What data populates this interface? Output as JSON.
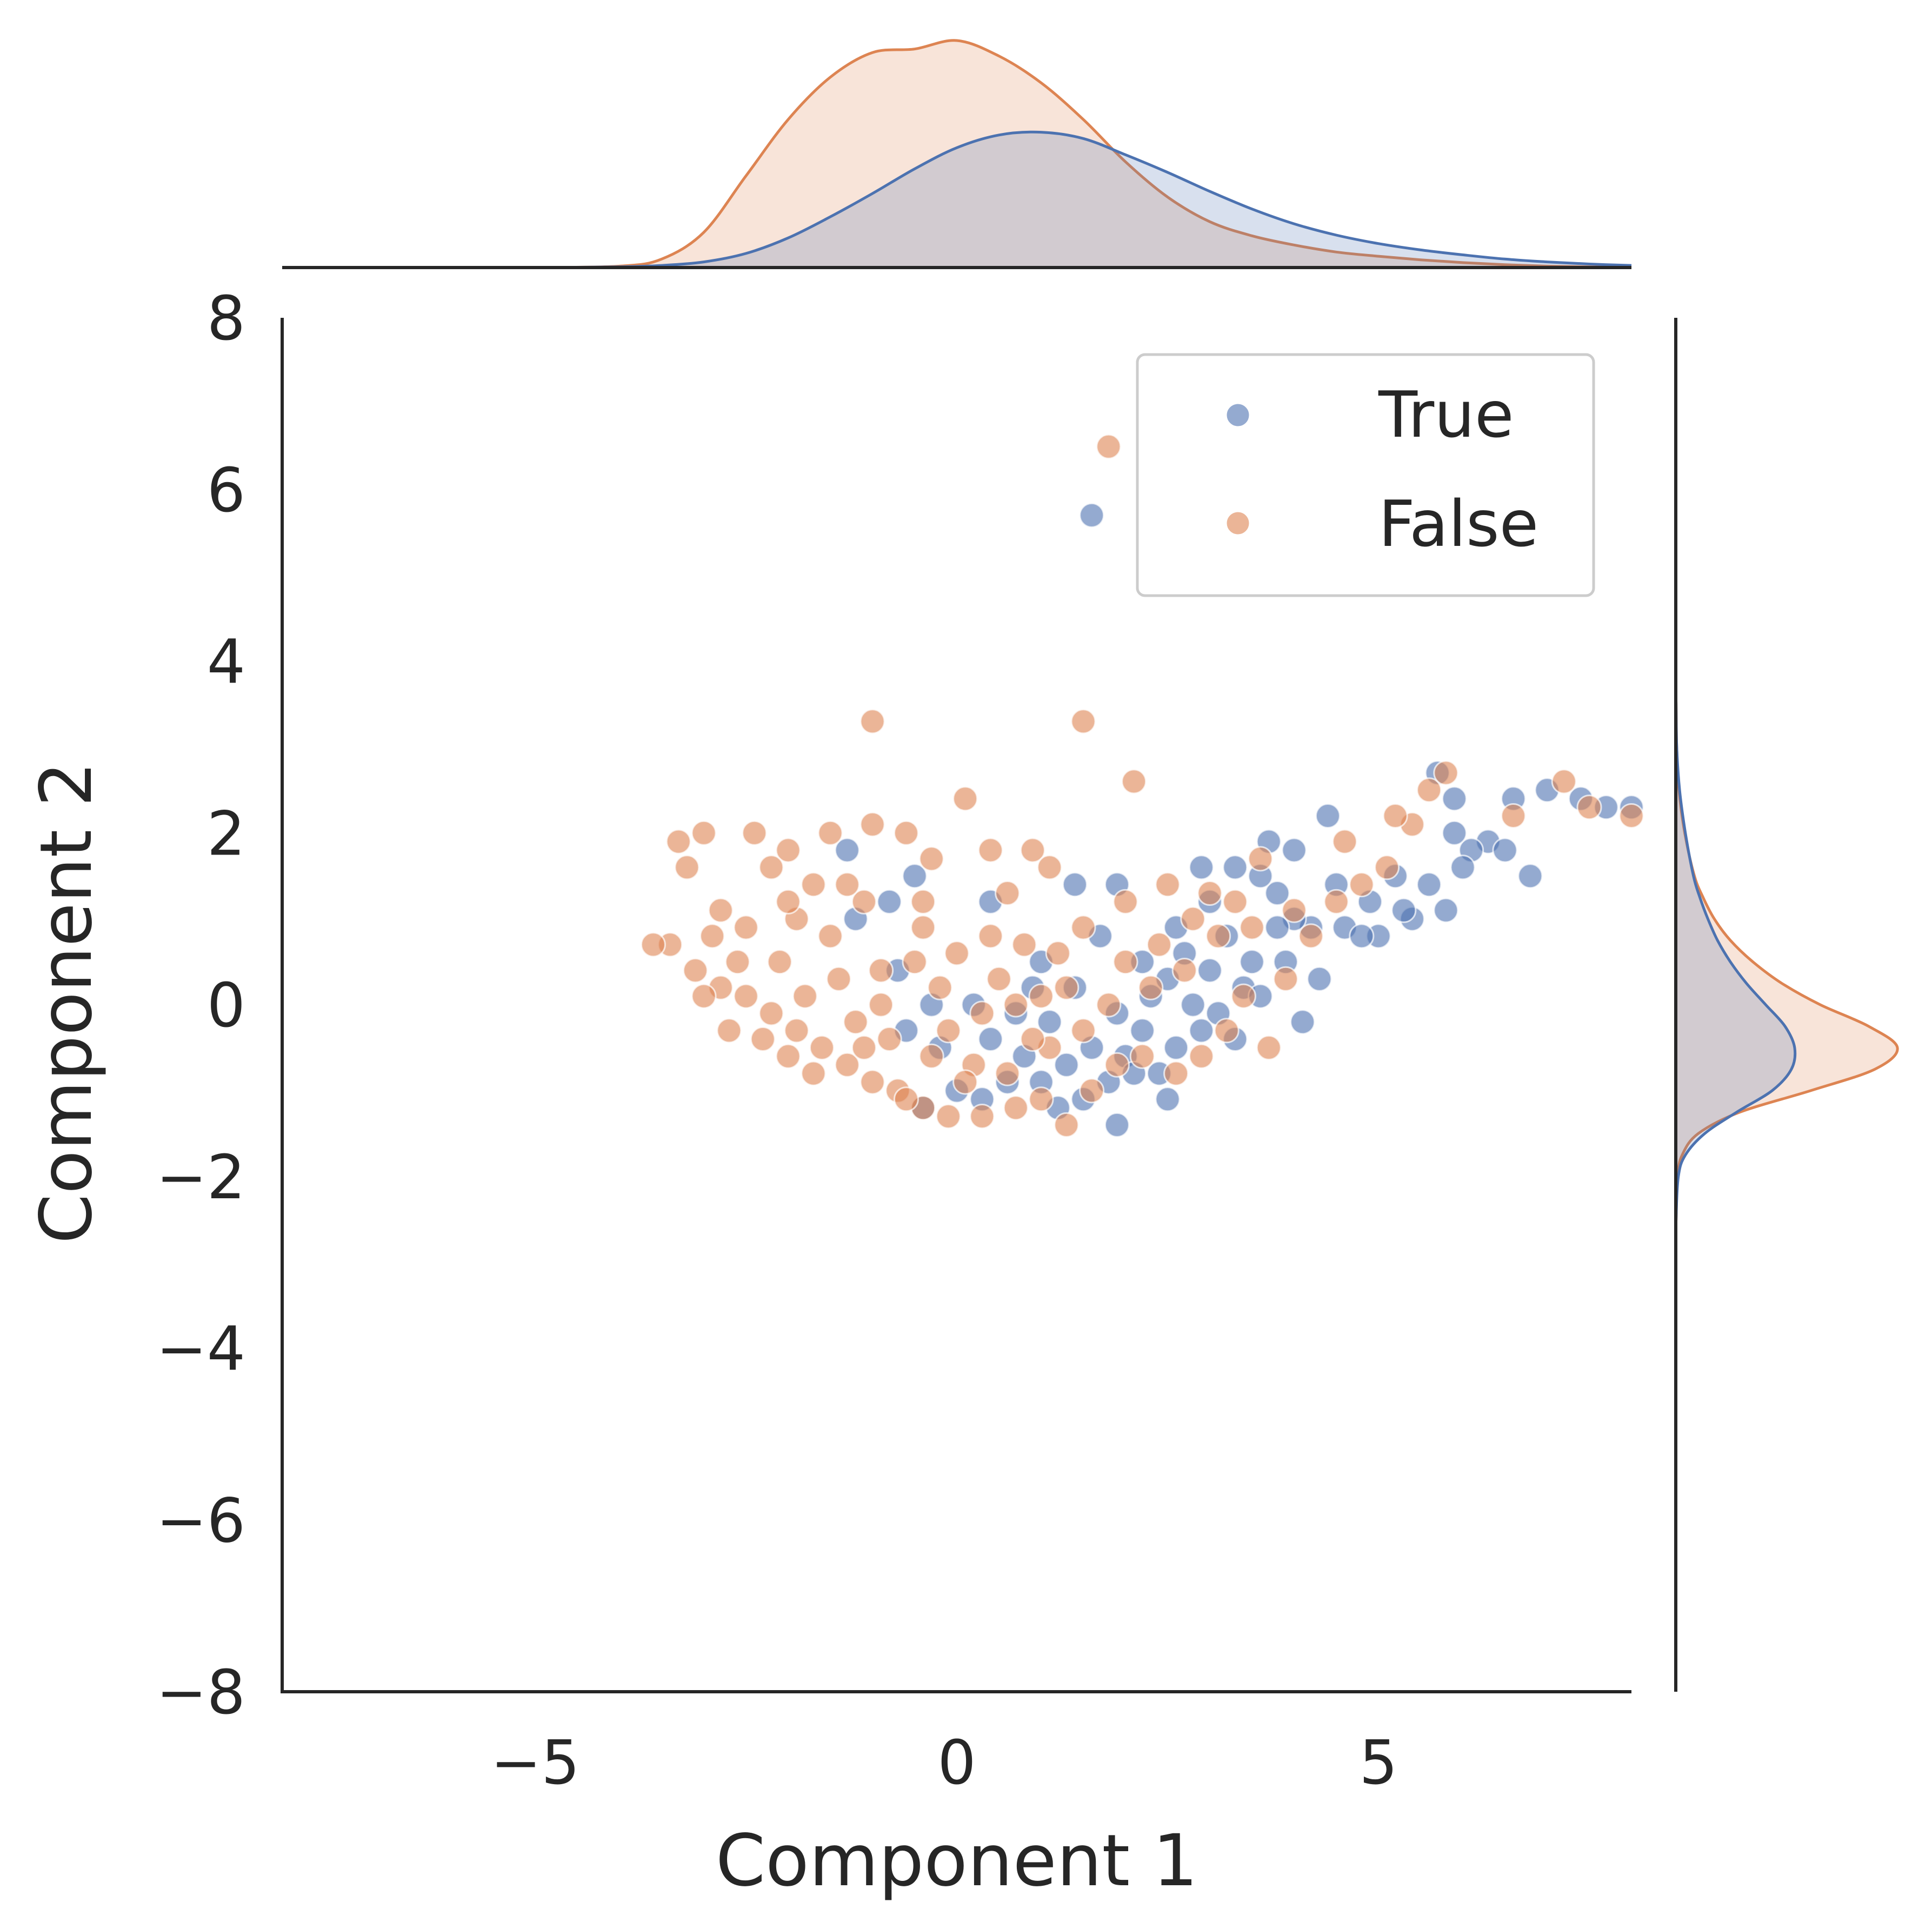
{
  "chart_data": {
    "type": "scatter",
    "subtype": "jointplot-with-marginal-kde",
    "title": "",
    "xlabel": "Component 1",
    "ylabel": "Component 2",
    "xlim": [
      -8,
      8
    ],
    "ylim": [
      -8,
      8
    ],
    "x_ticks": [
      {
        "value": -5,
        "label": "−5"
      },
      {
        "value": 0,
        "label": "0"
      },
      {
        "value": 5,
        "label": "5"
      }
    ],
    "y_ticks": [
      {
        "value": 8,
        "label": "8"
      },
      {
        "value": 6,
        "label": "6"
      },
      {
        "value": 4,
        "label": "4"
      },
      {
        "value": 2,
        "label": "2"
      },
      {
        "value": 0,
        "label": "0"
      },
      {
        "value": -2,
        "label": "−2"
      },
      {
        "value": -4,
        "label": "−4"
      },
      {
        "value": -6,
        "label": "−6"
      },
      {
        "value": -8,
        "label": "−8"
      }
    ],
    "grid": false,
    "legend": {
      "placement": "top-right",
      "entries": [
        "True",
        "False"
      ]
    },
    "series": [
      {
        "name": "True",
        "color": "#4c72b0",
        "points": [
          [
            1.6,
            5.7
          ],
          [
            8.0,
            2.3
          ],
          [
            7.4,
            2.4
          ],
          [
            7.0,
            2.5
          ],
          [
            6.3,
            1.9
          ],
          [
            6.1,
            1.8
          ],
          [
            5.9,
            2.4
          ],
          [
            5.7,
            2.7
          ],
          [
            6.5,
            1.8
          ],
          [
            6.8,
            1.5
          ],
          [
            6.0,
            1.6
          ],
          [
            5.6,
            1.4
          ],
          [
            5.2,
            1.5
          ],
          [
            5.4,
            1.0
          ],
          [
            5.0,
            0.8
          ],
          [
            4.6,
            0.9
          ],
          [
            4.2,
            0.9
          ],
          [
            4.0,
            1.0
          ],
          [
            3.8,
            1.3
          ],
          [
            3.6,
            1.5
          ],
          [
            4.4,
            2.2
          ],
          [
            3.7,
            1.9
          ],
          [
            3.3,
            1.6
          ],
          [
            2.9,
            1.6
          ],
          [
            3.0,
            1.2
          ],
          [
            3.2,
            0.8
          ],
          [
            2.7,
            0.6
          ],
          [
            2.5,
            0.3
          ],
          [
            2.3,
            0.1
          ],
          [
            2.8,
            0.0
          ],
          [
            3.1,
            -0.1
          ],
          [
            3.4,
            0.2
          ],
          [
            3.9,
            0.5
          ],
          [
            4.3,
            0.3
          ],
          [
            4.8,
            0.8
          ],
          [
            5.8,
            1.1
          ],
          [
            2.2,
            -0.3
          ],
          [
            2.6,
            -0.5
          ],
          [
            2.4,
            -0.8
          ],
          [
            2.0,
            -0.6
          ],
          [
            1.8,
            -0.9
          ],
          [
            1.5,
            -1.1
          ],
          [
            1.2,
            -1.2
          ],
          [
            1.0,
            -0.9
          ],
          [
            0.8,
            -0.6
          ],
          [
            1.6,
            -0.5
          ],
          [
            1.9,
            -0.1
          ],
          [
            1.4,
            0.2
          ],
          [
            1.1,
            -0.2
          ],
          [
            0.6,
            -0.9
          ],
          [
            0.3,
            -1.1
          ],
          [
            0.0,
            -1.0
          ],
          [
            -0.4,
            -1.2
          ],
          [
            0.4,
            -0.4
          ],
          [
            0.9,
            0.2
          ],
          [
            1.7,
            0.8
          ],
          [
            1.9,
            1.4
          ],
          [
            1.4,
            1.4
          ],
          [
            0.4,
            1.2
          ],
          [
            -0.5,
            1.5
          ],
          [
            -0.8,
            1.2
          ],
          [
            -1.3,
            1.8
          ],
          [
            -1.2,
            1.0
          ],
          [
            -0.7,
            0.4
          ],
          [
            -0.6,
            -0.3
          ],
          [
            -0.2,
            -0.5
          ],
          [
            0.2,
            0.0
          ],
          [
            1.3,
            -0.7
          ],
          [
            2.9,
            -0.3
          ],
          [
            3.5,
            0.5
          ],
          [
            4.1,
            -0.2
          ],
          [
            1.9,
            -1.4
          ],
          [
            2.5,
            -1.1
          ],
          [
            2.1,
            -0.8
          ],
          [
            3.0,
            0.4
          ],
          [
            3.3,
            -0.4
          ],
          [
            4.5,
            1.4
          ],
          [
            5.3,
            1.1
          ],
          [
            4.9,
            1.2
          ],
          [
            3.8,
            0.9
          ],
          [
            0.7,
            -0.1
          ],
          [
            1.0,
            0.5
          ],
          [
            -0.3,
            0.0
          ],
          [
            2.2,
            0.5
          ],
          [
            6.6,
            2.4
          ],
          [
            7.7,
            2.3
          ],
          [
            5.9,
            2.0
          ],
          [
            4.0,
            1.8
          ],
          [
            2.6,
            0.9
          ],
          [
            3.6,
            0.1
          ]
        ]
      },
      {
        "name": "False",
        "color": "#dd8452",
        "points": [
          [
            1.8,
            6.5
          ],
          [
            -1.0,
            3.3
          ],
          [
            1.5,
            3.3
          ],
          [
            2.1,
            2.6
          ],
          [
            0.1,
            2.4
          ],
          [
            -3.3,
            1.9
          ],
          [
            -3.0,
            2.0
          ],
          [
            -2.4,
            2.0
          ],
          [
            -1.5,
            2.0
          ],
          [
            -1.0,
            2.1
          ],
          [
            -0.6,
            2.0
          ],
          [
            -2.0,
            1.8
          ],
          [
            -2.2,
            1.6
          ],
          [
            -3.2,
            1.6
          ],
          [
            -1.7,
            1.4
          ],
          [
            -0.3,
            1.7
          ],
          [
            0.4,
            1.8
          ],
          [
            0.9,
            1.8
          ],
          [
            1.1,
            1.6
          ],
          [
            0.6,
            1.3
          ],
          [
            -0.4,
            1.2
          ],
          [
            -1.1,
            1.2
          ],
          [
            -1.9,
            1.0
          ],
          [
            -2.5,
            0.9
          ],
          [
            -2.9,
            0.8
          ],
          [
            -3.4,
            0.7
          ],
          [
            -3.6,
            0.7
          ],
          [
            -3.1,
            0.4
          ],
          [
            -2.8,
            0.2
          ],
          [
            -2.5,
            0.1
          ],
          [
            -2.2,
            -0.1
          ],
          [
            -1.9,
            -0.3
          ],
          [
            -1.6,
            -0.5
          ],
          [
            -1.3,
            -0.7
          ],
          [
            -1.0,
            -0.9
          ],
          [
            -0.7,
            -1.0
          ],
          [
            -0.4,
            -1.2
          ],
          [
            -0.1,
            -1.3
          ],
          [
            0.3,
            -1.3
          ],
          [
            0.7,
            -1.2
          ],
          [
            1.0,
            -1.1
          ],
          [
            1.3,
            -1.4
          ],
          [
            1.6,
            -1.0
          ],
          [
            1.9,
            -0.7
          ],
          [
            2.2,
            -0.6
          ],
          [
            2.6,
            -0.8
          ],
          [
            2.9,
            -0.6
          ],
          [
            3.2,
            -0.3
          ],
          [
            3.4,
            0.1
          ],
          [
            3.7,
            -0.5
          ],
          [
            3.9,
            0.3
          ],
          [
            4.2,
            0.8
          ],
          [
            4.5,
            1.2
          ],
          [
            4.8,
            1.4
          ],
          [
            5.1,
            1.6
          ],
          [
            5.4,
            2.1
          ],
          [
            5.6,
            2.5
          ],
          [
            5.8,
            2.7
          ],
          [
            6.6,
            2.2
          ],
          [
            7.2,
            2.6
          ],
          [
            7.5,
            2.3
          ],
          [
            8.0,
            2.2
          ],
          [
            3.6,
            1.7
          ],
          [
            3.0,
            1.3
          ],
          [
            2.5,
            1.4
          ],
          [
            2.0,
            1.2
          ],
          [
            1.5,
            0.9
          ],
          [
            1.2,
            0.6
          ],
          [
            0.8,
            0.7
          ],
          [
            0.4,
            0.8
          ],
          [
            0.0,
            0.6
          ],
          [
            -0.5,
            0.5
          ],
          [
            -0.9,
            0.4
          ],
          [
            -1.4,
            0.3
          ],
          [
            -1.8,
            0.1
          ],
          [
            -2.1,
            0.5
          ],
          [
            -2.6,
            0.5
          ],
          [
            -1.2,
            -0.2
          ],
          [
            -0.8,
            -0.4
          ],
          [
            -0.3,
            -0.6
          ],
          [
            0.2,
            -0.7
          ],
          [
            0.6,
            -0.8
          ],
          [
            1.1,
            -0.5
          ],
          [
            1.5,
            -0.3
          ],
          [
            1.8,
            0.0
          ],
          [
            2.3,
            0.2
          ],
          [
            2.7,
            0.4
          ],
          [
            3.1,
            0.8
          ],
          [
            3.5,
            0.9
          ],
          [
            4.0,
            1.1
          ],
          [
            -1.5,
            0.8
          ],
          [
            -0.9,
            0.0
          ],
          [
            -0.2,
            0.2
          ],
          [
            0.5,
            0.3
          ],
          [
            1.0,
            0.1
          ],
          [
            -2.3,
            -0.4
          ],
          [
            -1.7,
            -0.8
          ],
          [
            -0.6,
            -1.1
          ],
          [
            0.1,
            -0.9
          ],
          [
            0.9,
            -0.4
          ],
          [
            2.0,
            0.5
          ],
          [
            2.8,
            1.0
          ],
          [
            4.6,
            1.9
          ],
          [
            5.2,
            2.2
          ],
          [
            -3.0,
            0.1
          ],
          [
            -2.7,
            -0.3
          ],
          [
            -2.0,
            -0.6
          ],
          [
            -1.1,
            -0.5
          ],
          [
            -0.1,
            -0.3
          ],
          [
            0.7,
            0.0
          ],
          [
            -0.4,
            0.9
          ],
          [
            -1.3,
            1.4
          ],
          [
            -2.0,
            1.2
          ],
          [
            -2.8,
            1.1
          ],
          [
            3.3,
            1.2
          ],
          [
            2.4,
            0.7
          ],
          [
            1.3,
            0.2
          ],
          [
            0.3,
            -0.1
          ]
        ]
      }
    ],
    "marginal_top": {
      "x": [
        -8,
        -7,
        -6,
        -5,
        -4,
        -3.5,
        -3,
        -2.5,
        -2,
        -1.5,
        -1,
        -0.5,
        0,
        0.5,
        1,
        1.5,
        2,
        2.5,
        3,
        3.5,
        4,
        4.5,
        5,
        5.5,
        6,
        6.5,
        7,
        7.5,
        8
      ],
      "series": [
        {
          "name": "True",
          "density": [
            0,
            0,
            0,
            0,
            0.001,
            0.003,
            0.008,
            0.02,
            0.042,
            0.072,
            0.105,
            0.14,
            0.17,
            0.188,
            0.192,
            0.183,
            0.16,
            0.135,
            0.108,
            0.083,
            0.062,
            0.046,
            0.034,
            0.025,
            0.018,
            0.012,
            0.008,
            0.005,
            0.003
          ]
        },
        {
          "name": "False",
          "density": [
            0,
            0,
            0,
            0,
            0.002,
            0.012,
            0.05,
            0.13,
            0.21,
            0.27,
            0.305,
            0.31,
            0.322,
            0.3,
            0.262,
            0.21,
            0.15,
            0.1,
            0.065,
            0.045,
            0.032,
            0.022,
            0.016,
            0.011,
            0.007,
            0.004,
            0.002,
            0.001,
            0
          ]
        }
      ]
    },
    "marginal_right": {
      "y": [
        -8,
        -3,
        -2.5,
        -2,
        -1.75,
        -1.5,
        -1.25,
        -1,
        -0.75,
        -0.5,
        -0.25,
        0,
        0.25,
        0.5,
        0.75,
        1,
        1.25,
        1.5,
        2,
        2.5,
        3,
        3.5,
        4,
        8
      ],
      "series": [
        {
          "name": "True",
          "density": [
            0,
            0,
            0.001,
            0.008,
            0.03,
            0.09,
            0.19,
            0.3,
            0.36,
            0.37,
            0.34,
            0.28,
            0.22,
            0.17,
            0.13,
            0.1,
            0.075,
            0.055,
            0.03,
            0.012,
            0.003,
            0.001,
            0,
            0
          ]
        },
        {
          "name": "False",
          "density": [
            0,
            0,
            0.001,
            0.006,
            0.02,
            0.07,
            0.2,
            0.42,
            0.62,
            0.69,
            0.6,
            0.45,
            0.33,
            0.24,
            0.17,
            0.12,
            0.085,
            0.058,
            0.028,
            0.01,
            0.003,
            0.001,
            0,
            0
          ]
        }
      ]
    }
  }
}
